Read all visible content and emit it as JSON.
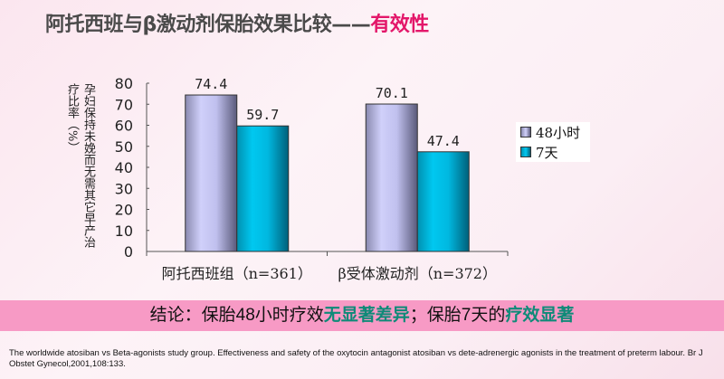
{
  "title": {
    "main": "阿托西班与β激动剂保胎效果比较——",
    "highlight": "有效性",
    "highlight_color": "#e3176a"
  },
  "chart_data": {
    "type": "bar",
    "categories": [
      "阿托西班组（n=361）",
      "β受体激动剂（n=372）"
    ],
    "series": [
      {
        "name": "48小时",
        "values": [
          74.4,
          70.1
        ],
        "color": "#c4c4f0"
      },
      {
        "name": "7天",
        "values": [
          59.7,
          47.4
        ],
        "color": "#00c0e8"
      }
    ],
    "data_labels": [
      [
        "74.4",
        "70.1"
      ],
      [
        "59.7",
        "47.4"
      ]
    ],
    "ylabel": "孕妇保持未娩而无需其它早产治疗比率（%）",
    "ylim": [
      0,
      80
    ],
    "yticks": [
      "0",
      "10",
      "20",
      "30",
      "40",
      "50",
      "60",
      "70",
      "80"
    ],
    "grid": false,
    "legend": "right"
  },
  "conclusion": {
    "prefix": "结论：保胎48小时疗效",
    "highlight1": "无显著差异",
    "middle": "；保胎7天的",
    "highlight2": "疗效显著",
    "highlight_color": "#0e8a78"
  },
  "reference": "The worldwide atosiban vs Beta-agonists study group. Effectiveness and safety of the oxytocin antagonist atosiban vs dete-adrenergic agonists in the treatment of preterm labour. Br J Obstet Gynecol,2001,108:133."
}
